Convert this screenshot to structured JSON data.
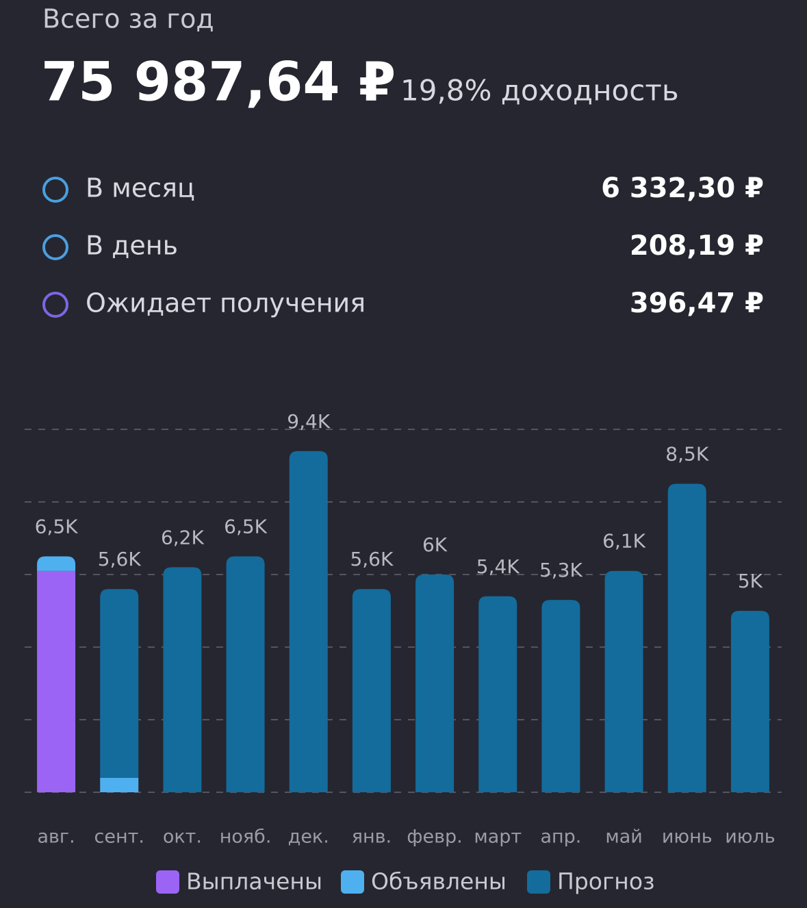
{
  "summary": {
    "title": "Всего за год",
    "amount": "75 987,64 ₽",
    "yield": "19,8% доходность",
    "rows": [
      {
        "label": "В месяц",
        "value": "6 332,30 ₽",
        "color": "#4a9fe0"
      },
      {
        "label": "В день",
        "value": "208,19 ₽",
        "color": "#4a9fe0"
      },
      {
        "label": "Ожидает получения",
        "value": "396,47 ₽",
        "color": "#7d66e3"
      }
    ]
  },
  "chart_data": {
    "type": "stacked_bar",
    "categories": [
      "авг.",
      "сент.",
      "окт.",
      "нояб.",
      "дек.",
      "янв.",
      "февр.",
      "март",
      "апр.",
      "май",
      "июнь",
      "июль"
    ],
    "series": [
      {
        "name": "Выплачены",
        "color": "#9b64f5",
        "values": [
          6100,
          0,
          0,
          0,
          0,
          0,
          0,
          0,
          0,
          0,
          0,
          0
        ]
      },
      {
        "name": "Объявлены",
        "color": "#4fb0f0",
        "values": [
          400,
          400,
          0,
          0,
          0,
          0,
          0,
          0,
          0,
          0,
          0,
          0
        ]
      },
      {
        "name": "Прогноз",
        "color": "#136c9c",
        "values": [
          0,
          5200,
          6200,
          6500,
          9400,
          5600,
          6000,
          5400,
          5300,
          6100,
          8500,
          5000
        ]
      }
    ],
    "value_labels": [
      "6,5K",
      "5,6K",
      "6,2K",
      "6,5K",
      "9,4K",
      "5,6K",
      "6K",
      "5,4K",
      "5,3K",
      "6,1K",
      "8,5K",
      "5K"
    ],
    "ylim": [
      0,
      10000
    ],
    "yticks": [
      0,
      2000,
      4000,
      6000,
      8000,
      10000
    ],
    "grid": true,
    "legend": "bottom"
  }
}
